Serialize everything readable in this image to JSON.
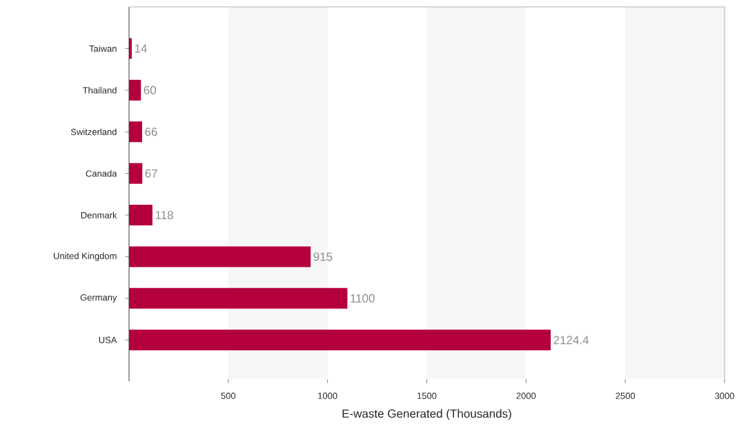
{
  "chart_data": {
    "type": "bar",
    "orientation": "horizontal",
    "xlabel": "E-waste Generated (Thousands)",
    "categories": [
      "Taiwan",
      "Thailand",
      "Switzerland",
      "Canada",
      "Denmark",
      "United Kingdom",
      "Germany",
      "USA"
    ],
    "values": [
      14,
      60,
      66,
      67,
      118,
      915,
      1100,
      2124.4
    ],
    "color": "#b5003f",
    "data_labels": true,
    "xlim": [
      0,
      3000
    ],
    "xticks": [
      500,
      1000,
      1500,
      2000,
      2500,
      3000
    ],
    "bands": [
      {
        "axis": "x",
        "from": 500,
        "to": 1000,
        "color": "#f6f6f6"
      },
      {
        "axis": "x",
        "from": 1500,
        "to": 2000,
        "color": "#f6f6f6"
      },
      {
        "axis": "x",
        "from": 2500,
        "to": 3000,
        "color": "#f6f6f6"
      }
    ],
    "grid": false
  }
}
